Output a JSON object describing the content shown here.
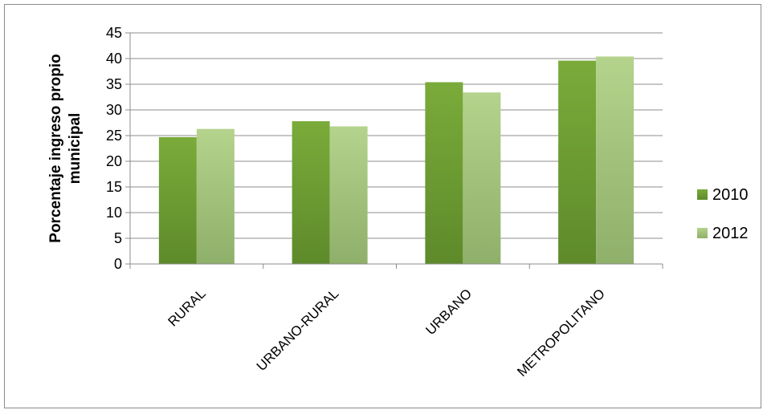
{
  "chart_data": {
    "type": "bar",
    "categories": [
      "RURAL",
      "URBANO-RURAL",
      "URBANO",
      "METROPOLITANO"
    ],
    "series": [
      {
        "name": "2010",
        "values": [
          24.7,
          27.8,
          35.4,
          39.6
        ],
        "color": "#6a9a2f"
      },
      {
        "name": "2012",
        "values": [
          26.3,
          26.8,
          33.4,
          40.4
        ],
        "color": "#a8c880"
      }
    ],
    "title": "",
    "xlabel": "",
    "ylabel_lines": [
      "Porcentaje ingreso propio",
      "municipal"
    ],
    "ylim": [
      0,
      45
    ],
    "yticks": [
      0,
      5,
      10,
      15,
      20,
      25,
      30,
      35,
      40,
      45
    ],
    "grid": true,
    "legend_position": "right"
  }
}
